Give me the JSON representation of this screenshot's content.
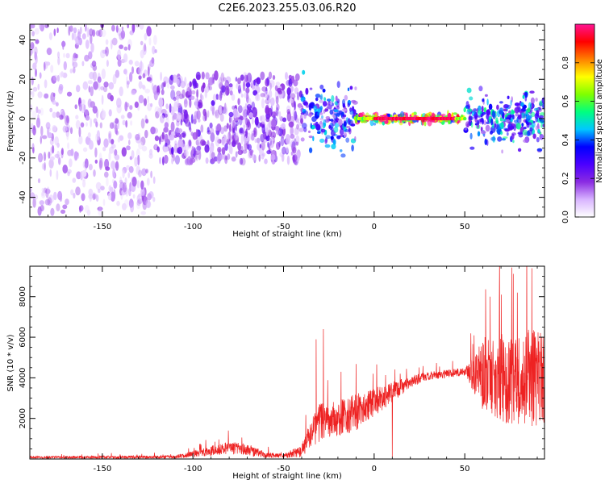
{
  "title": "C2E6.2023.255.03.06.R20",
  "chart_data": [
    {
      "type": "heatmap",
      "xlabel": "Height of straight line (km)",
      "ylabel": "Frequency (Hz)",
      "xlim": [
        -190,
        94
      ],
      "ylim": [
        -50,
        48
      ],
      "xticks": [
        -150,
        -100,
        -50,
        0,
        50
      ],
      "yticks": [
        -40,
        -20,
        0,
        20,
        40
      ],
      "colorbar": {
        "label": "Normalized spectral amplitude",
        "range": [
          0.0,
          1.0
        ],
        "ticks": [
          "0.0",
          "0.2",
          "0.4",
          "0.6",
          "0.8"
        ],
        "colormap": [
          "#ffffff",
          "#d8b4ff",
          "#8a2be2",
          "#4b00ff",
          "#0000ff",
          "#00c8ff",
          "#00ff7f",
          "#7fff00",
          "#ffff00",
          "#ff8000",
          "#ff0000",
          "#ff1493"
        ]
      },
      "bands": [
        {
          "x": [
            -190,
            -120
          ],
          "y_spread": 48,
          "amplitude": 0.12
        },
        {
          "x": [
            -120,
            -40
          ],
          "y_spread": 22,
          "amplitude": 0.18
        },
        {
          "x": [
            -40,
            -10
          ],
          "y_spread": 12,
          "amplitude": 0.35
        },
        {
          "x": [
            -10,
            50
          ],
          "y_spread": 2,
          "amplitude": 0.95
        },
        {
          "x": [
            50,
            94
          ],
          "y_spread": 10,
          "amplitude": 0.4
        }
      ]
    },
    {
      "type": "line",
      "xlabel": "Height of straight line (km)",
      "ylabel": "SNR (10 * v/v)",
      "xlim": [
        -190,
        94
      ],
      "ylim": [
        0,
        9500
      ],
      "xticks": [
        -150,
        -100,
        -50,
        0,
        50
      ],
      "yticks": [
        2000,
        4000,
        6000,
        8000
      ],
      "color": "#ee2222",
      "envelope": {
        "x": [
          -190,
          -110,
          -100,
          -90,
          -80,
          -70,
          -60,
          -50,
          -40,
          -35,
          -30,
          -20,
          -10,
          0,
          10,
          20,
          30,
          40,
          50,
          55,
          60,
          70,
          80,
          94
        ],
        "mean": [
          80,
          100,
          250,
          400,
          550,
          450,
          200,
          150,
          400,
          1200,
          1800,
          2000,
          2300,
          2800,
          3300,
          3800,
          4100,
          4200,
          4300,
          4200,
          4200,
          4000,
          4000,
          4000
        ],
        "noise": [
          60,
          80,
          150,
          250,
          300,
          300,
          150,
          100,
          300,
          700,
          1000,
          900,
          900,
          700,
          500,
          300,
          200,
          200,
          200,
          900,
          1800,
          2200,
          2400,
          2400
        ]
      },
      "spikes": [
        {
          "x": -28,
          "y": 6400
        },
        {
          "x": -32,
          "y": 5900
        },
        {
          "x": 87,
          "y": 9400
        },
        {
          "x": 79,
          "y": 8200
        },
        {
          "x": 64,
          "y": 8000
        },
        {
          "x": 10,
          "y": 100
        }
      ]
    }
  ]
}
